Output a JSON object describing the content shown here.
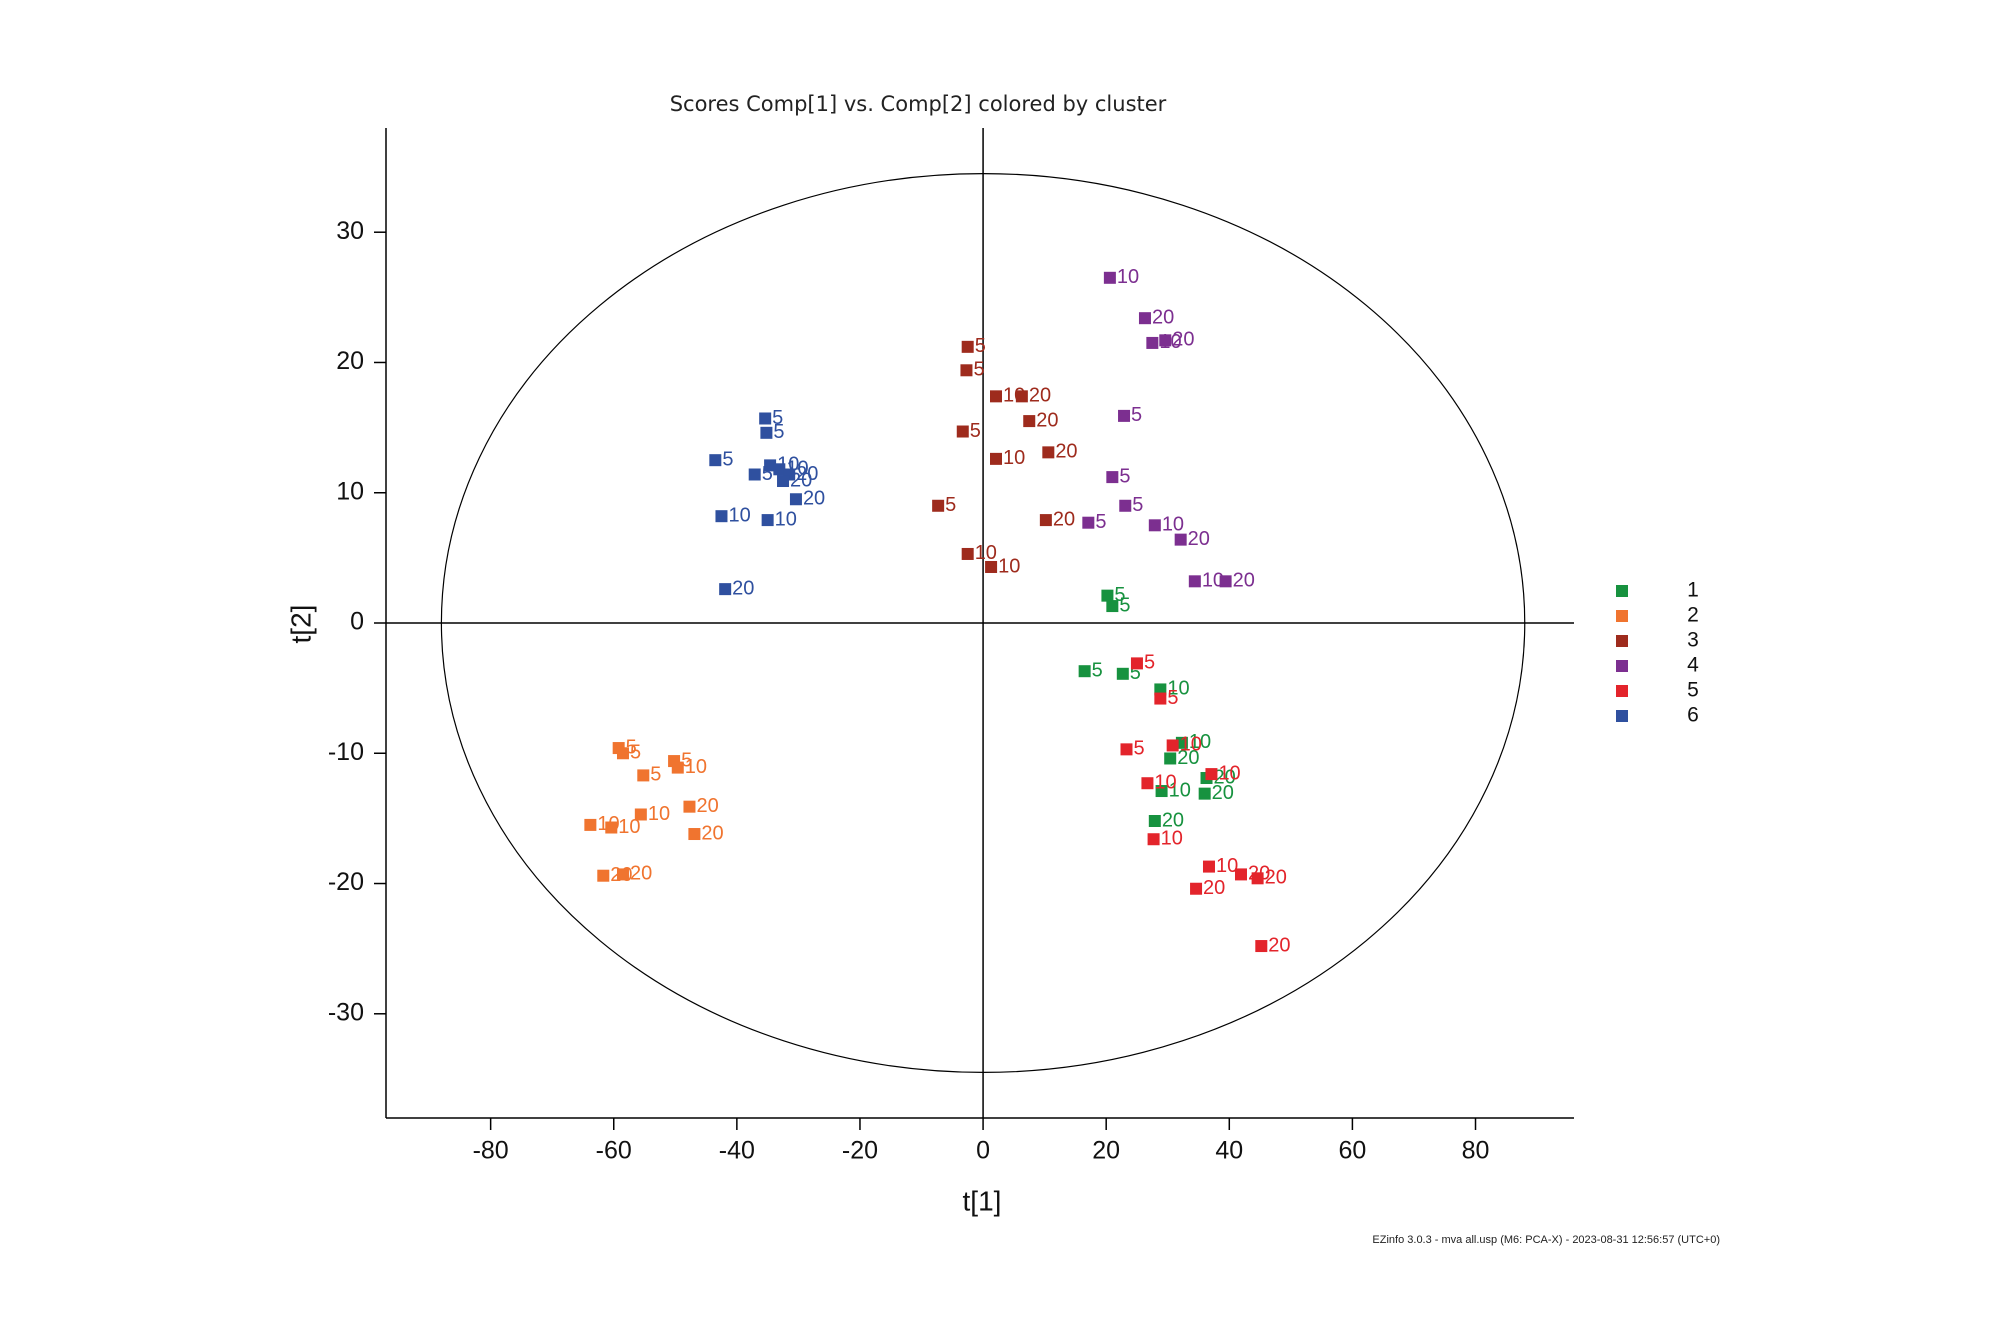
{
  "chart_data": {
    "type": "scatter",
    "title": "Scores Comp[1] vs. Comp[2] colored by cluster",
    "x_label": "t[1]",
    "y_label": "t[2]",
    "xlim": [
      -97,
      96
    ],
    "ylim": [
      -38,
      38
    ],
    "xticks": [
      -80,
      -60,
      -40,
      -20,
      0,
      20,
      40,
      60,
      80
    ],
    "yticks": [
      -30,
      -20,
      -10,
      0,
      10,
      20,
      30
    ],
    "grid": false,
    "zero_lines": true,
    "legend": "right",
    "ellipse_radii": [
      88,
      34.5
    ],
    "series": [
      {
        "name": "1",
        "color": "#17923f",
        "x": [
          20.2,
          21.0,
          16.5,
          22.7,
          28.8,
          32.3,
          30.4,
          36.3,
          29.0,
          36.0,
          27.9
        ],
        "y": [
          2.1,
          1.3,
          -3.7,
          -3.9,
          -5.1,
          -9.2,
          -10.4,
          -11.9,
          -12.9,
          -13.1,
          -15.2
        ],
        "point_labels": [
          "5",
          "5",
          "5",
          "5",
          "10",
          "10",
          "20",
          "20",
          "10",
          "20",
          "20"
        ]
      },
      {
        "name": "2",
        "color": "#f0742f",
        "x": [
          -59.2,
          -58.5,
          -50.2,
          -49.6,
          -55.2,
          -55.6,
          -47.7,
          -63.8,
          -60.4,
          -46.9,
          -61.7,
          -58.5
        ],
        "y": [
          -9.6,
          -10.0,
          -10.6,
          -11.1,
          -11.7,
          -14.7,
          -14.1,
          -15.5,
          -15.7,
          -16.2,
          -19.4,
          -19.3
        ],
        "point_labels": [
          "5",
          "5",
          "5",
          "10",
          "5",
          "10",
          "20",
          "10",
          "10",
          "20",
          "20",
          "20"
        ]
      },
      {
        "name": "3",
        "color": "#9e2b1d",
        "x": [
          -2.5,
          -2.7,
          2.1,
          6.3,
          7.5,
          -3.3,
          2.1,
          10.6,
          -7.3,
          10.2,
          -2.5,
          1.3
        ],
        "y": [
          21.2,
          19.4,
          17.4,
          17.4,
          15.5,
          14.7,
          12.6,
          13.1,
          9.0,
          7.9,
          5.3,
          4.3
        ],
        "point_labels": [
          "5",
          "5",
          "10",
          "20",
          "20",
          "5",
          "10",
          "20",
          "5",
          "20",
          "10",
          "10"
        ]
      },
      {
        "name": "4",
        "color": "#7c2f90",
        "x": [
          20.6,
          26.3,
          27.5,
          29.6,
          22.9,
          21.0,
          23.1,
          17.1,
          27.9,
          32.1,
          34.4,
          39.4
        ],
        "y": [
          26.5,
          23.4,
          21.5,
          21.7,
          15.9,
          11.2,
          9.0,
          7.7,
          7.5,
          6.4,
          3.2,
          3.2
        ],
        "point_labels": [
          "10",
          "20",
          "10",
          "20",
          "5",
          "5",
          "5",
          "5",
          "10",
          "20",
          "10",
          "20"
        ]
      },
      {
        "name": "5",
        "color": "#e3242b",
        "x": [
          25.0,
          28.8,
          23.3,
          30.8,
          26.7,
          37.1,
          27.7,
          36.7,
          41.9,
          44.6,
          34.6,
          45.2
        ],
        "y": [
          -3.1,
          -5.8,
          -9.7,
          -9.4,
          -12.3,
          -11.6,
          -16.6,
          -18.7,
          -19.3,
          -19.6,
          -20.4,
          -24.8
        ],
        "point_labels": [
          "5",
          "5",
          "5",
          "10",
          "10",
          "10",
          "10",
          "10",
          "20",
          "20",
          "20",
          "20"
        ]
      },
      {
        "name": "6",
        "color": "#2f509f",
        "x": [
          -35.4,
          -35.2,
          -43.5,
          -37.1,
          -34.6,
          -33.1,
          -31.5,
          -32.5,
          -30.4,
          -42.5,
          -35.0,
          -41.9
        ],
        "y": [
          15.7,
          14.6,
          12.5,
          11.4,
          12.1,
          11.8,
          11.4,
          10.9,
          9.5,
          8.2,
          7.9,
          2.6
        ],
        "point_labels": [
          "5",
          "5",
          "5",
          "5",
          "10",
          "10",
          "20",
          "20",
          "20",
          "10",
          "10",
          "20"
        ]
      }
    ]
  },
  "footer": "EZinfo 3.0.3 - mva all.usp (M6: PCA-X) - 2023-08-31 12:56:57 (UTC+0)"
}
